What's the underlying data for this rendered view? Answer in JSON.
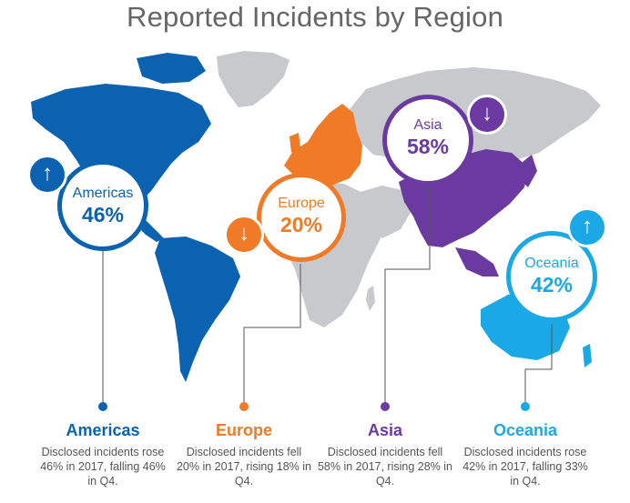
{
  "title": "Reported Incidents by Region",
  "colors": {
    "americas": "#0a62b0",
    "europe": "#f07a25",
    "asia": "#6b3aa0",
    "oceania": "#1aa9e6",
    "land_other": "#c7c9cc"
  },
  "regions": [
    {
      "key": "americas",
      "name": "Americas",
      "percent": "46%",
      "trend_icon": "arrow-up-icon",
      "heading": "Americas",
      "description": "Disclosed incidents rose 46% in 2017, falling 46% in Q4."
    },
    {
      "key": "europe",
      "name": "Europe",
      "percent": "20%",
      "trend_icon": "arrow-down-icon",
      "heading": "Europe",
      "description": "Disclosed incidents fell 20% in 2017, rising 18% in Q4."
    },
    {
      "key": "asia",
      "name": "Asia",
      "percent": "58%",
      "trend_icon": "arrow-down-icon",
      "heading": "Asia",
      "description": "Disclosed incidents fell 58% in 2017, rising 28% in Q4."
    },
    {
      "key": "oceania",
      "name": "Oceania",
      "percent": "42%",
      "trend_icon": "arrow-up-icon",
      "heading": "Oceania",
      "description": "Disclosed incidents rose 42% in 2017, falling 33% in Q4."
    }
  ]
}
